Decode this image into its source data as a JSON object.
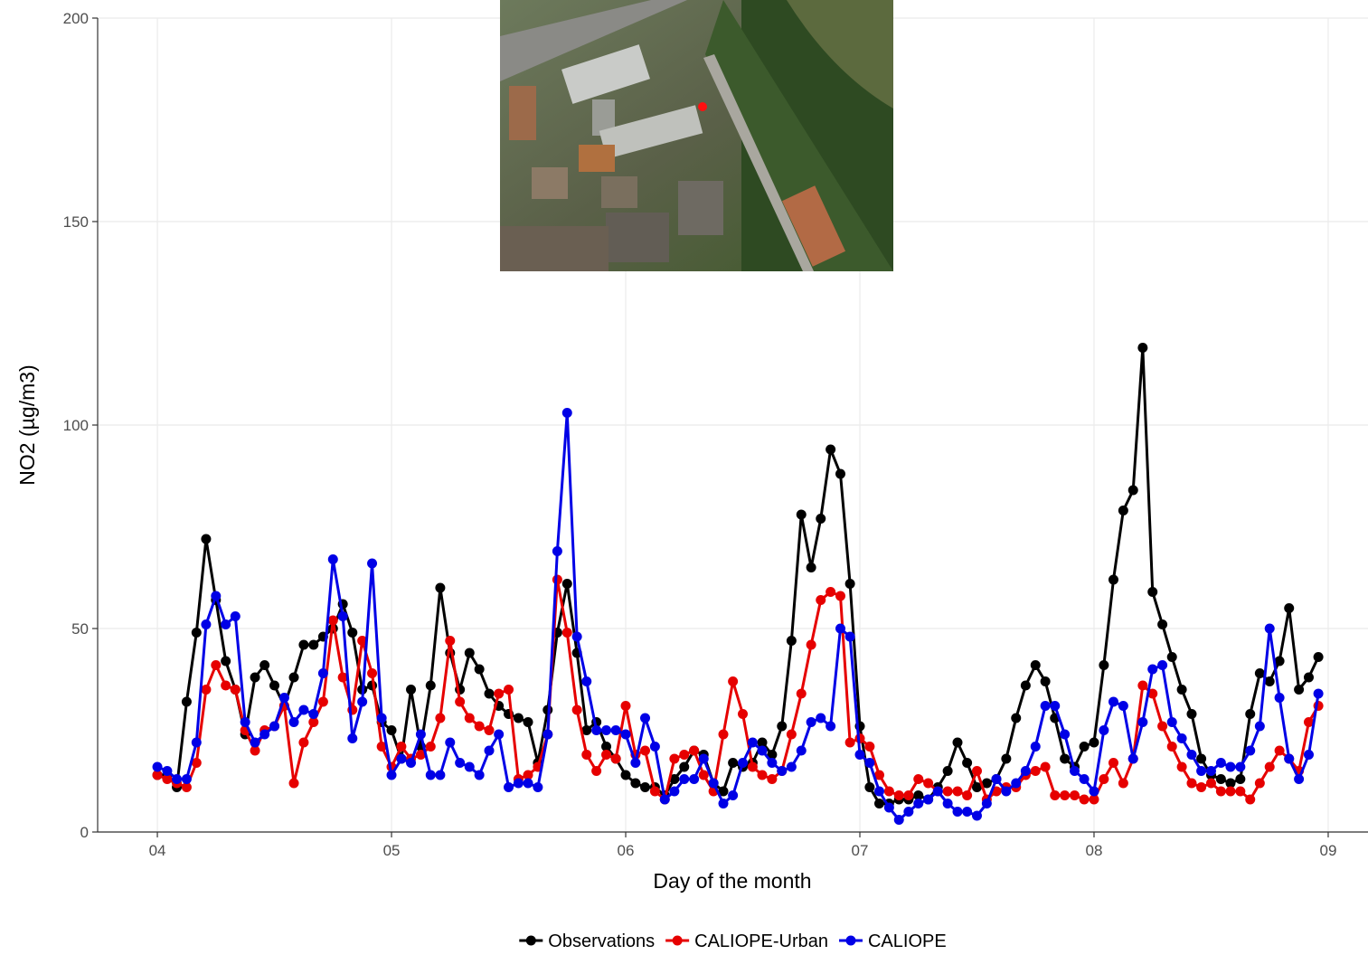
{
  "chart_data": {
    "type": "line",
    "xlabel": "Day of the month",
    "ylabel": "NO2 (µg/m3)",
    "xlim": [
      3.745,
      9.17
    ],
    "ylim": [
      0,
      200
    ],
    "xticks": [
      {
        "value": 4,
        "label": "04"
      },
      {
        "value": 5,
        "label": "05"
      },
      {
        "value": 6,
        "label": "06"
      },
      {
        "value": 7,
        "label": "07"
      },
      {
        "value": 8,
        "label": "08"
      },
      {
        "value": 9,
        "label": "09"
      }
    ],
    "yticks": [
      0,
      50,
      100,
      150,
      200
    ],
    "grid": true,
    "legend": "bottom",
    "x": [
      4,
      4.042,
      4.083,
      4.125,
      4.167,
      4.208,
      4.25,
      4.292,
      4.333,
      4.375,
      4.417,
      4.458,
      4.5,
      4.542,
      4.583,
      4.625,
      4.667,
      4.708,
      4.75,
      4.792,
      4.833,
      4.875,
      4.917,
      4.958,
      5,
      5.042,
      5.083,
      5.125,
      5.167,
      5.208,
      5.25,
      5.292,
      5.333,
      5.375,
      5.417,
      5.458,
      5.5,
      5.542,
      5.583,
      5.625,
      5.667,
      5.708,
      5.75,
      5.792,
      5.833,
      5.875,
      5.917,
      5.958,
      6,
      6.042,
      6.083,
      6.125,
      6.167,
      6.208,
      6.25,
      6.292,
      6.333,
      6.375,
      6.417,
      6.458,
      6.5,
      6.542,
      6.583,
      6.625,
      6.667,
      6.708,
      6.75,
      6.792,
      6.833,
      6.875,
      6.917,
      6.958,
      7,
      7.042,
      7.083,
      7.125,
      7.167,
      7.208,
      7.25,
      7.292,
      7.333,
      7.375,
      7.417,
      7.458,
      7.5,
      7.542,
      7.583,
      7.625,
      7.667,
      7.708,
      7.75,
      7.792,
      7.833,
      7.875,
      7.917,
      7.958,
      8,
      8.042,
      8.083,
      8.125,
      8.167,
      8.208,
      8.25,
      8.292,
      8.333,
      8.375,
      8.417,
      8.458,
      8.5,
      8.542,
      8.583,
      8.625,
      8.667,
      8.708,
      8.75,
      8.792,
      8.833,
      8.875,
      8.917,
      8.958
    ],
    "series": [
      {
        "name": "Observations",
        "color": "#000000",
        "values": [
          14,
          14,
          11,
          32,
          49,
          72,
          57,
          42,
          35,
          24,
          38,
          41,
          36,
          31,
          38,
          46,
          46,
          48,
          50,
          56,
          49,
          35,
          36,
          27,
          25,
          18,
          35,
          21,
          36,
          60,
          44,
          35,
          44,
          40,
          34,
          31,
          29,
          28,
          27,
          17,
          30,
          49,
          61,
          44,
          25,
          27,
          21,
          18,
          14,
          12,
          11,
          11,
          9,
          13,
          16,
          20,
          19,
          12,
          10,
          17,
          16,
          17,
          22,
          19,
          26,
          47,
          78,
          65,
          77,
          94,
          88,
          61,
          26,
          11,
          7,
          7,
          8,
          8,
          9,
          8,
          11,
          15,
          22,
          17,
          11,
          12,
          13,
          18,
          28,
          36,
          41,
          37,
          28,
          18,
          16,
          21,
          22,
          41,
          62,
          79,
          84,
          119,
          59,
          51,
          43,
          35,
          29,
          18,
          14,
          13,
          12,
          13,
          29,
          39,
          37,
          42,
          55,
          35,
          38,
          43
        ]
      },
      {
        "name": "CALIOPE-Urban",
        "color": "#e60000",
        "values": [
          14,
          13,
          12,
          11,
          17,
          35,
          41,
          36,
          35,
          25,
          20,
          25,
          26,
          31,
          12,
          22,
          27,
          32,
          52,
          38,
          30,
          47,
          39,
          21,
          16,
          21,
          18,
          19,
          21,
          28,
          47,
          32,
          28,
          26,
          25,
          34,
          35,
          13,
          14,
          16,
          24,
          62,
          49,
          30,
          19,
          15,
          19,
          18,
          31,
          19,
          20,
          10,
          8,
          18,
          19,
          20,
          14,
          10,
          24,
          37,
          29,
          16,
          14,
          13,
          15,
          24,
          34,
          46,
          57,
          59,
          58,
          22,
          23,
          21,
          14,
          10,
          9,
          9,
          13,
          12,
          10,
          10,
          10,
          9,
          15,
          8,
          10,
          11,
          11,
          14,
          15,
          16,
          9,
          9,
          9,
          8,
          8,
          13,
          17,
          12,
          18,
          36,
          34,
          26,
          21,
          16,
          12,
          11,
          12,
          10,
          10,
          10,
          8,
          12,
          16,
          20,
          18,
          15,
          27,
          31
        ]
      },
      {
        "name": "CALIOPE",
        "color": "#0000e6",
        "values": [
          16,
          15,
          13,
          13,
          22,
          51,
          58,
          51,
          53,
          27,
          22,
          24,
          26,
          33,
          27,
          30,
          29,
          39,
          67,
          53,
          23,
          32,
          66,
          28,
          14,
          18,
          17,
          24,
          14,
          14,
          22,
          17,
          16,
          14,
          20,
          24,
          11,
          12,
          12,
          11,
          24,
          69,
          103,
          48,
          37,
          25,
          25,
          25,
          24,
          17,
          28,
          21,
          8,
          10,
          13,
          13,
          18,
          12,
          7,
          9,
          17,
          22,
          20,
          17,
          15,
          16,
          20,
          27,
          28,
          26,
          50,
          48,
          19,
          17,
          10,
          6,
          3,
          5,
          7,
          8,
          10,
          7,
          5,
          5,
          4,
          7,
          13,
          10,
          12,
          15,
          21,
          31,
          31,
          24,
          15,
          13,
          10,
          25,
          32,
          31,
          18,
          27,
          40,
          41,
          27,
          23,
          19,
          15,
          15,
          17,
          16,
          16,
          20,
          26,
          50,
          33,
          18,
          13,
          19,
          34
        ]
      }
    ]
  }
}
